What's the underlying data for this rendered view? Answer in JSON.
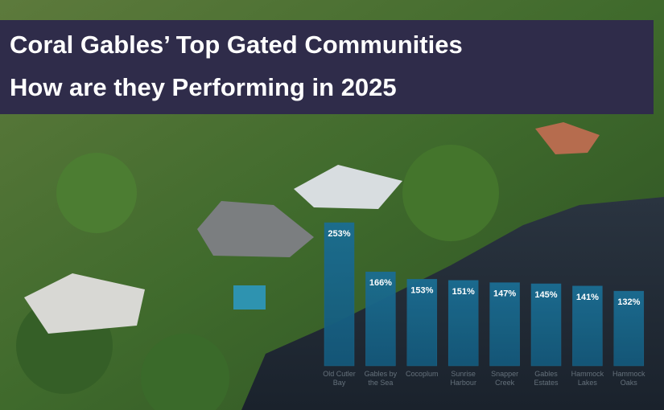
{
  "chart_data": {
    "type": "bar",
    "title": "Coral Gables’ Top Gated Communities",
    "subtitle": "How are they Performing in 2025",
    "categories": [
      "Old Cutler Bay",
      "Gables by the Sea",
      "Cocoplum",
      "Sunrise Harbour",
      "Snapper Creek",
      "Gables Estates",
      "Hammock Lakes",
      "Hammock Oaks"
    ],
    "values": [
      253,
      166,
      153,
      151,
      147,
      145,
      141,
      132
    ],
    "value_labels": [
      "253%",
      "166%",
      "153%",
      "151%",
      "147%",
      "145%",
      "141%",
      "132%"
    ],
    "color": "#1d6a8f"
  }
}
